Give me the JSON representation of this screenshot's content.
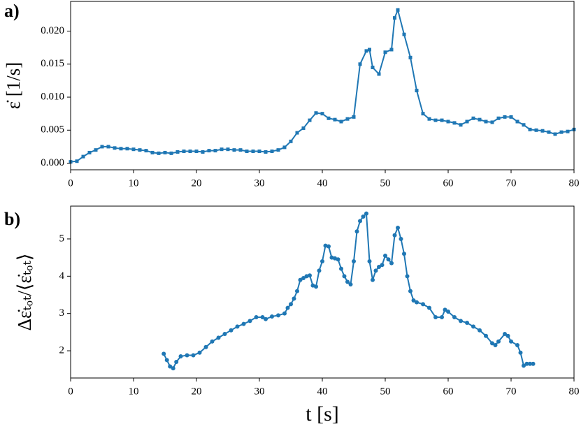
{
  "chart_data": [
    {
      "type": "line",
      "panel_label": "a)",
      "y_label": "ε̇ [1/s]",
      "x": [
        0,
        1,
        2,
        3,
        4,
        5,
        6,
        7,
        8,
        9,
        10,
        11,
        12,
        13,
        14,
        15,
        16,
        17,
        18,
        19,
        20,
        21,
        22,
        23,
        24,
        25,
        26,
        27,
        28,
        29,
        30,
        31,
        32,
        33,
        34,
        35,
        36,
        37,
        38,
        39,
        40,
        41,
        42,
        43,
        44,
        45,
        46,
        47,
        47.5,
        48,
        49,
        50,
        51,
        51.5,
        52,
        53,
        54,
        55,
        56,
        57,
        58,
        59,
        60,
        61,
        62,
        63,
        64,
        65,
        66,
        67,
        68,
        69,
        70,
        71,
        72,
        73,
        74,
        75,
        76,
        77,
        78,
        79,
        80
      ],
      "series": [
        {
          "color": "#1f77b4",
          "marker": "square",
          "values": [
            0.0002,
            0.0003,
            0.001,
            0.0016,
            0.002,
            0.0025,
            0.0025,
            0.0023,
            0.0022,
            0.0022,
            0.0021,
            0.002,
            0.0019,
            0.0016,
            0.0015,
            0.0016,
            0.0015,
            0.0017,
            0.0018,
            0.0018,
            0.0018,
            0.0017,
            0.0019,
            0.0019,
            0.0021,
            0.0021,
            0.002,
            0.002,
            0.0018,
            0.0018,
            0.0018,
            0.0017,
            0.0018,
            0.002,
            0.0024,
            0.0033,
            0.0046,
            0.0053,
            0.0065,
            0.0076,
            0.0075,
            0.0068,
            0.0066,
            0.0063,
            0.0067,
            0.007,
            0.015,
            0.017,
            0.0172,
            0.0145,
            0.0135,
            0.0168,
            0.0172,
            0.022,
            0.0232,
            0.0195,
            0.016,
            0.011,
            0.0075,
            0.0067,
            0.0065,
            0.0065,
            0.0063,
            0.0061,
            0.0058,
            0.0063,
            0.0068,
            0.0066,
            0.0063,
            0.0062,
            0.0068,
            0.007,
            0.007,
            0.0063,
            0.0058,
            0.0051,
            0.005,
            0.0049,
            0.0047,
            0.0044,
            0.0047,
            0.0048,
            0.0051
          ]
        }
      ],
      "xlim": [
        0,
        80
      ],
      "xticks": [
        0,
        10,
        20,
        30,
        40,
        50,
        60,
        70,
        80
      ],
      "ylim": [
        -0.001,
        0.0245
      ],
      "yticks": [
        {
          "value": 0,
          "label": "0.000"
        },
        {
          "value": 0.005,
          "label": "0.005"
        },
        {
          "value": 0.01,
          "label": "0.010"
        },
        {
          "value": 0.015,
          "label": "0.015"
        },
        {
          "value": 0.02,
          "label": "0.020"
        }
      ]
    },
    {
      "type": "line",
      "panel_label": "b)",
      "y_label": "Δε̇ₜₒₜ/⟨ε̇ₜₒₜ⟩",
      "x_label": "t [s]",
      "x": [
        14.8,
        15.3,
        15.8,
        16.3,
        16.8,
        17.5,
        18.5,
        19.5,
        20.5,
        21.5,
        22.5,
        23.5,
        24.5,
        25.5,
        26.5,
        27.5,
        28.5,
        29.5,
        30.5,
        31,
        32,
        33,
        34,
        34.5,
        35,
        35.5,
        36,
        36.5,
        37,
        37.5,
        38,
        38.5,
        39,
        39.5,
        40,
        40.5,
        41,
        41.5,
        42,
        42.5,
        43,
        43.5,
        44,
        44.5,
        45,
        45.5,
        46,
        46.5,
        47,
        47.5,
        48,
        48.5,
        49,
        49.5,
        50,
        50.5,
        51,
        51.5,
        52,
        52.5,
        53,
        53.5,
        54,
        54.5,
        55,
        56,
        57,
        58,
        59,
        59.5,
        60,
        61,
        62,
        63,
        64,
        65,
        66,
        67,
        67.5,
        68,
        69,
        69.5,
        70,
        71,
        71.5,
        72,
        72.5,
        73,
        73.5
      ],
      "series": [
        {
          "color": "#1f77b4",
          "marker": "circle",
          "values": [
            1.92,
            1.75,
            1.58,
            1.53,
            1.7,
            1.85,
            1.88,
            1.88,
            1.95,
            2.1,
            2.25,
            2.35,
            2.45,
            2.55,
            2.65,
            2.72,
            2.8,
            2.9,
            2.9,
            2.85,
            2.92,
            2.95,
            3.0,
            3.15,
            3.25,
            3.4,
            3.6,
            3.9,
            3.95,
            4.0,
            4.02,
            3.75,
            3.72,
            4.15,
            4.4,
            4.82,
            4.8,
            4.5,
            4.48,
            4.45,
            4.2,
            4.0,
            3.85,
            3.78,
            4.4,
            5.2,
            5.48,
            5.6,
            5.68,
            4.4,
            3.9,
            4.15,
            4.25,
            4.3,
            4.55,
            4.45,
            4.35,
            5.1,
            5.3,
            5.0,
            4.6,
            4.0,
            3.6,
            3.35,
            3.3,
            3.25,
            3.15,
            2.9,
            2.9,
            3.1,
            3.05,
            2.9,
            2.8,
            2.75,
            2.65,
            2.55,
            2.4,
            2.2,
            2.15,
            2.25,
            2.45,
            2.4,
            2.25,
            2.15,
            1.95,
            1.6,
            1.65,
            1.65,
            1.65
          ]
        }
      ],
      "xlim": [
        0,
        80
      ],
      "xticks": [
        0,
        10,
        20,
        30,
        40,
        50,
        60,
        70,
        80
      ],
      "ylim": [
        1.27,
        5.88
      ],
      "yticks": [
        2,
        3,
        4,
        5
      ]
    }
  ]
}
